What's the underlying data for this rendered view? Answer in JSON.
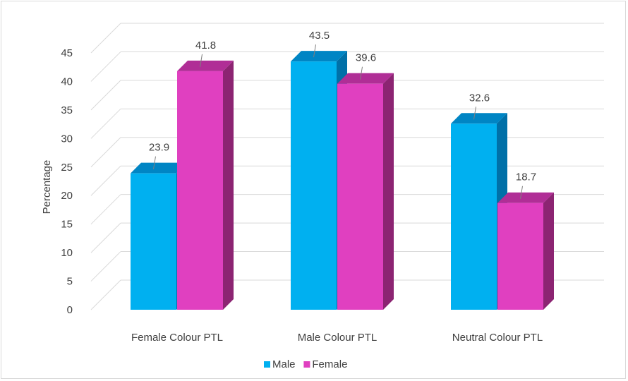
{
  "chart_data": {
    "type": "bar",
    "categories": [
      "Female Colour PTL",
      "Male Colour PTL",
      "Neutral Colour PTL"
    ],
    "series": [
      {
        "name": "Male",
        "values": [
          23.9,
          43.5,
          32.6
        ],
        "color": "#00b0f0",
        "side_color": "#0070a8",
        "top_color": "#0085c4"
      },
      {
        "name": "Female",
        "values": [
          41.8,
          39.6,
          18.7
        ],
        "color": "#e040c0",
        "side_color": "#8c2472",
        "top_color": "#b02e96"
      }
    ],
    "ylabel": "Percentage",
    "ylim": [
      0,
      45
    ],
    "yticks": [
      0,
      5,
      10,
      15,
      20,
      25,
      30,
      35,
      40,
      45
    ],
    "grid": true,
    "legend_position": "bottom",
    "style": "3d-clustered-column"
  }
}
